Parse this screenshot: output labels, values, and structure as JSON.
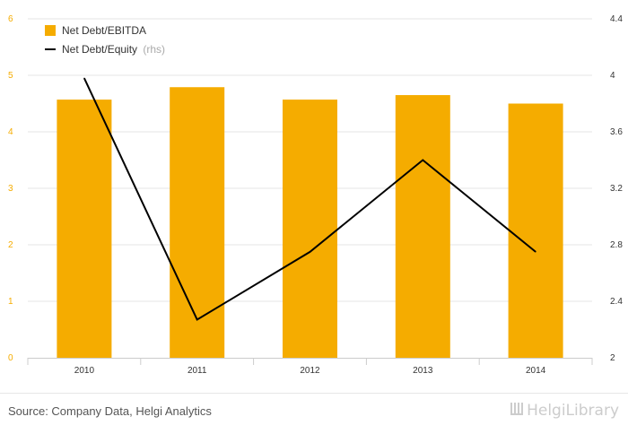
{
  "chart_data": {
    "type": "bar",
    "categories": [
      "2010",
      "2011",
      "2012",
      "2013",
      "2014"
    ],
    "series": [
      {
        "name": "Net Debt/EBITDA",
        "kind": "bar",
        "axis": "left",
        "color": "#f5ac00",
        "values": [
          4.57,
          4.79,
          4.57,
          4.65,
          4.5
        ]
      },
      {
        "name": "Net Debt/Equity",
        "name_suffix": "(rhs)",
        "kind": "line",
        "axis": "right",
        "color": "#000000",
        "values": [
          3.98,
          2.27,
          2.75,
          3.4,
          2.75
        ]
      }
    ],
    "ylim_left": [
      0,
      6
    ],
    "yticks_left": [
      0,
      1,
      2,
      3,
      4,
      5,
      6
    ],
    "ylim_right": [
      2,
      4.4
    ],
    "yticks_right": [
      "2",
      "2.4",
      "2.8",
      "3.2",
      "3.6",
      "4",
      "4.4"
    ],
    "grid": true,
    "legend_placement": "top-left",
    "colors": {
      "left_tick": "#f5ac00",
      "right_tick": "#333333",
      "grid": "#e6e6e6",
      "axis": "#cccccc"
    }
  },
  "footer": {
    "source": "Source: Company Data, Helgi Analytics",
    "logo": "HelgiLibrary"
  }
}
